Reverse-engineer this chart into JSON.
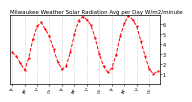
{
  "title": "Milwaukee Weather Solar Radiation Avg per Day W/m2/minute",
  "y_values": [
    3.2,
    2.8,
    2.1,
    1.4,
    2.6,
    4.5,
    5.8,
    6.2,
    5.5,
    4.8,
    3.5,
    2.2,
    1.5,
    1.8,
    3.2,
    5.0,
    6.4,
    6.8,
    6.5,
    5.9,
    4.6,
    3.0,
    1.8,
    1.2,
    1.6,
    2.9,
    4.8,
    6.1,
    6.9,
    6.5,
    5.8,
    4.3,
    2.8,
    1.5,
    1.0,
    1.3
  ],
  "line_color": "#FF0000",
  "line_style": "--",
  "marker": "s",
  "marker_color": "#FF0000",
  "background_color": "#FFFFFF",
  "grid_color": "#999999",
  "grid_style": ":",
  "ylim": [
    0,
    7
  ],
  "yticks": [
    1,
    2,
    3,
    4,
    5,
    6
  ],
  "ytick_labels": [
    "1",
    "2",
    "3",
    "4",
    "5",
    "6"
  ],
  "ytick_fontsize": 3.5,
  "xtick_fontsize": 3.0,
  "title_fontsize": 4.0,
  "border_color": "#000000",
  "n_points": 36,
  "grid_interval": 3
}
